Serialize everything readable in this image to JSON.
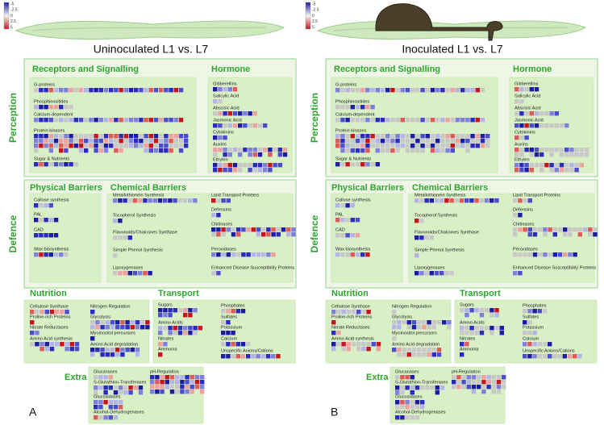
{
  "legend": {
    "labels": [
      "-5",
      "-2.5",
      "0",
      "2.5",
      "5"
    ]
  },
  "panels": [
    {
      "title": "Uninoculated L1 vs. L7",
      "letter": "A"
    },
    {
      "title": "Inoculated L1 vs. L7",
      "letter": "B"
    }
  ],
  "sections": {
    "perception": {
      "label": "Perception",
      "receptors": {
        "title": "Receptors and Signalling",
        "items": [
          "G-proteins",
          "Phosphinositides",
          "Calcium-dependent",
          "Protein kinases",
          "Sugar & Nutrients"
        ]
      },
      "hormone": {
        "title": "Hormone",
        "items": [
          "Gibberellins",
          "Salicylic Acid",
          "Abscisic Acid",
          "Jasmonic Acid",
          "Cytokinins",
          "Auxins",
          "Ethylen"
        ]
      }
    },
    "defence": {
      "label": "Defence",
      "physical": {
        "title": "Physical Barriers",
        "items": [
          "Callose synthesis",
          "PAL",
          "CAD",
          "Wax biosynthesis"
        ]
      },
      "chemical": {
        "title": "Chemical Barriers",
        "items": [
          "Metallothionein Synthesis",
          "Tocopherol Synthesis",
          "Flavonoids/Chalcones Synthase",
          "Simple Phenol Synthesis",
          "Lipoxygenases",
          "Lipid Transport Proteins",
          "Defensins",
          "Chitinases",
          "Peroxidases",
          "Enhanced Disease Susceptibility Proteins"
        ]
      }
    },
    "nutrition": {
      "title": "Nutrition",
      "items": [
        "Cellulose Synthase",
        "Proline-rich Proteins",
        "Nitrate Reductases",
        "Amino Acid synthesis",
        "Nitrogen Regulation",
        "Glycolysis",
        "Myoinositol precursors",
        "Amino Acid degradation"
      ]
    },
    "transport": {
      "title": "Transport",
      "items": [
        "Sugars",
        "Amino Acids",
        "Nitrates",
        "Ammonia",
        "Phosphates",
        "Sulfates",
        "Potassium",
        "Calcium",
        "Unspecific Anions/Cations"
      ]
    },
    "extra": {
      "title": "Extra",
      "items": [
        "Glucanases",
        "S-Glutathion-Transferases",
        "Glucosidases",
        "Alcohol-Dehydrogenases",
        "pH-Regulation"
      ]
    }
  }
}
